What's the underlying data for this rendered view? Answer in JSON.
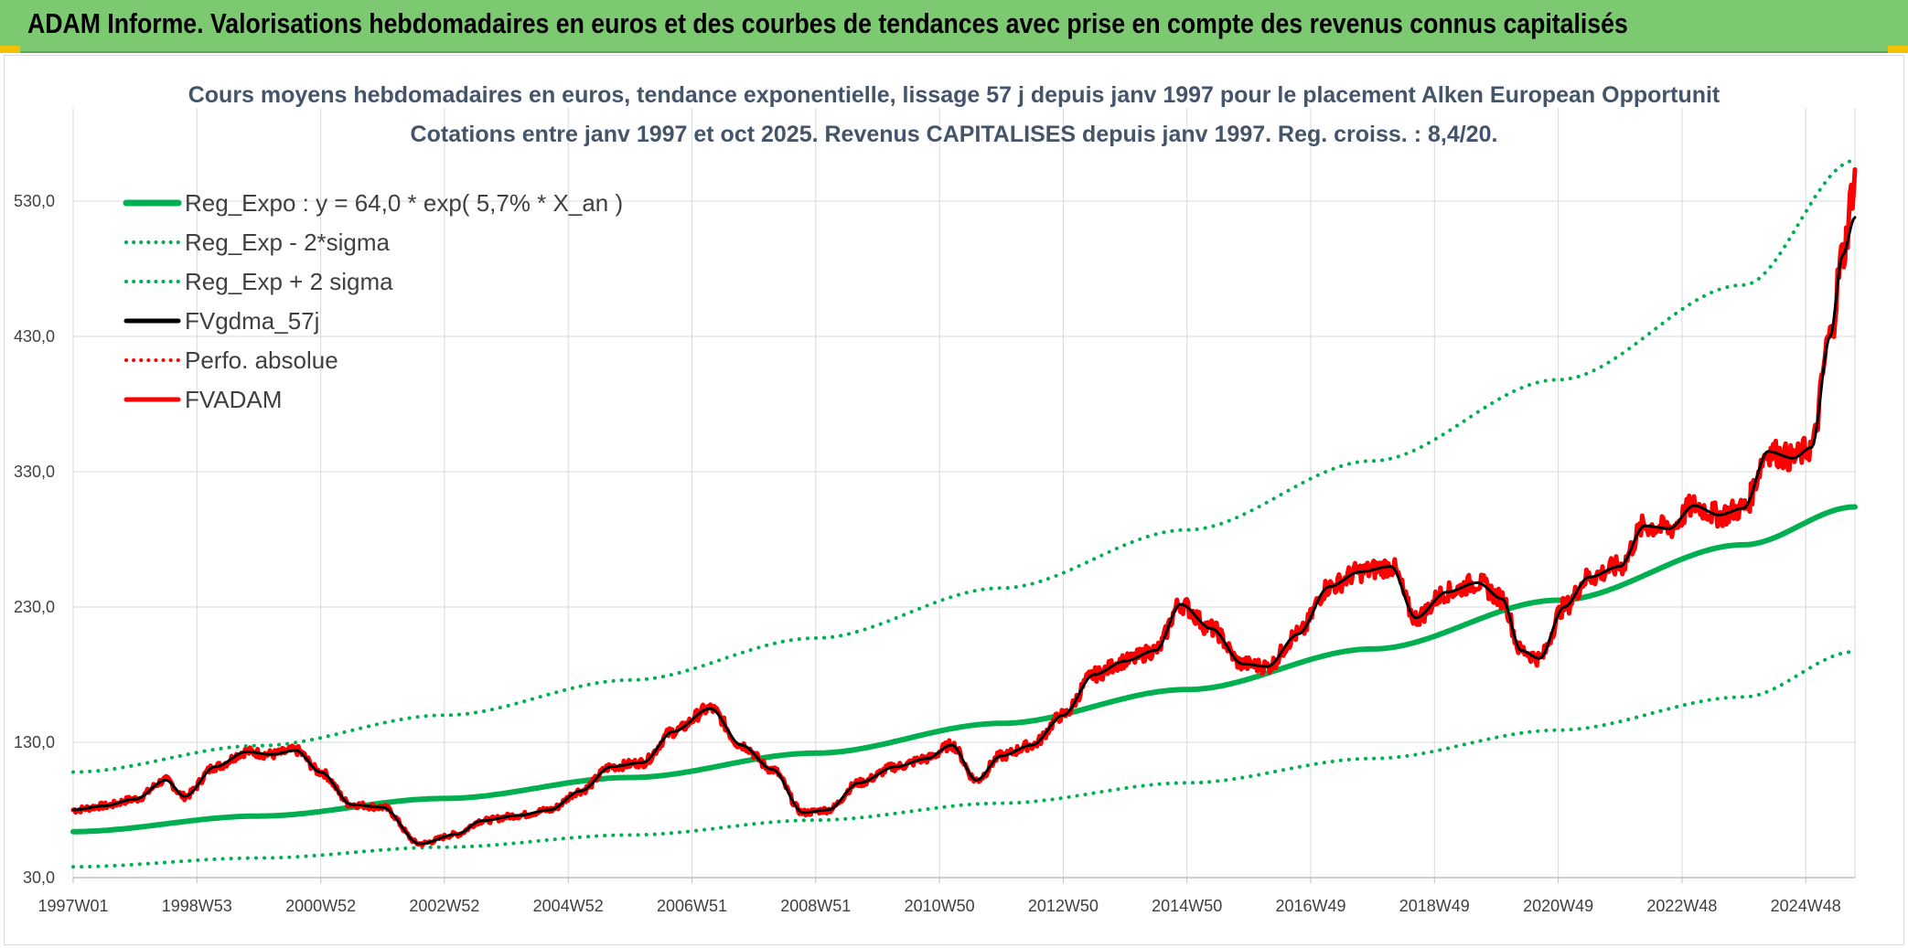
{
  "banner": {
    "title": "ADAM Informe. Valorisations hebdomadaires en euros et des courbes de tendances avec prise en compte des revenus connus capitalisés"
  },
  "chart_data": {
    "type": "line",
    "title": "Cours moyens hebdomadaires en euros, tendance exponentielle, lissage 57 j depuis janv 1997 pour le placement Alken European Opportunit",
    "subtitle": "Cotations entre janv 1997 et oct 2025. Revenus CAPITALISES depuis janv 1997. Reg. croiss. : 8,4/20.",
    "xlabel": "",
    "ylabel": "",
    "ylim": [
      30,
      580
    ],
    "yticks": [
      "30,0",
      "130,0",
      "230,0",
      "330,0",
      "430,0",
      "530,0"
    ],
    "xticks": [
      "1997W01",
      "1998W53",
      "2000W52",
      "2002W52",
      "2004W52",
      "2006W51",
      "2008W51",
      "2010W50",
      "2012W50",
      "2014W50",
      "2016W49",
      "2018W49",
      "2020W49",
      "2022W48",
      "2024W48"
    ],
    "xlim": [
      1997.0,
      2025.8
    ],
    "grid": true,
    "legend_position": "top-left",
    "series": [
      {
        "name": "Reg_Expo : y = 64,0 * exp( 5,7% *  X_an )",
        "color": "#00b050",
        "style": "solid",
        "width": 6,
        "x": [
          1997.0,
          2000.0,
          2003.0,
          2006.0,
          2009.0,
          2012.0,
          2015.0,
          2018.0,
          2021.0,
          2024.0,
          2025.8
        ],
        "values": [
          64.0,
          75.5,
          88.5,
          104.0,
          122.0,
          144.0,
          169.0,
          199.0,
          235.0,
          276.0,
          304.0
        ]
      },
      {
        "name": "Reg_Exp - 2*sigma",
        "color": "#00b050",
        "style": "dotted",
        "width": 4,
        "x": [
          1997.0,
          2000.0,
          2003.0,
          2006.0,
          2009.0,
          2012.0,
          2015.0,
          2018.0,
          2021.0,
          2024.0,
          2025.8
        ],
        "values": [
          38.0,
          44.5,
          52.5,
          61.5,
          72.5,
          85.0,
          100.0,
          118.0,
          139.0,
          163.5,
          197.0
        ]
      },
      {
        "name": "Reg_Exp + 2 sigma",
        "color": "#00b050",
        "style": "dotted",
        "width": 4,
        "x": [
          1997.0,
          2000.0,
          2003.0,
          2006.0,
          2009.0,
          2012.0,
          2015.0,
          2018.0,
          2021.0,
          2024.0,
          2025.8
        ],
        "values": [
          108.0,
          127.5,
          150.0,
          176.0,
          207.0,
          244.0,
          287.0,
          338.0,
          398.0,
          468.0,
          560.0
        ]
      },
      {
        "name": "FVgdma_57j",
        "color": "#000000",
        "style": "solid",
        "width": 3,
        "x": [
          1997.0,
          1997.5,
          1998.0,
          1998.5,
          1998.8,
          1999.3,
          1999.8,
          2000.2,
          2000.6,
          2001.0,
          2001.5,
          2002.0,
          2002.6,
          2003.2,
          2003.6,
          2004.2,
          2004.7,
          2005.2,
          2005.7,
          2006.2,
          2006.7,
          2007.3,
          2007.8,
          2008.3,
          2008.8,
          2009.2,
          2009.7,
          2010.3,
          2010.8,
          2011.2,
          2011.6,
          2012.0,
          2012.5,
          2013.0,
          2013.5,
          2014.0,
          2014.5,
          2014.9,
          2015.4,
          2015.9,
          2016.3,
          2016.8,
          2017.3,
          2017.8,
          2018.3,
          2018.7,
          2019.2,
          2019.7,
          2020.1,
          2020.4,
          2020.7,
          2021.1,
          2021.5,
          2022.0,
          2022.4,
          2022.8,
          2023.2,
          2023.6,
          2024.0,
          2024.4,
          2024.8,
          2025.1,
          2025.4,
          2025.6,
          2025.8
        ],
        "values": [
          80,
          83,
          88,
          102,
          90,
          112,
          123,
          121,
          124,
          108,
          84,
          82,
          55,
          62,
          72,
          76,
          80,
          94,
          112,
          115,
          138,
          155,
          128,
          110,
          78,
          80,
          100,
          112,
          118,
          128,
          102,
          120,
          128,
          150,
          180,
          190,
          198,
          232,
          214,
          188,
          186,
          210,
          245,
          256,
          260,
          222,
          241,
          248,
          236,
          198,
          192,
          230,
          252,
          260,
          290,
          288,
          305,
          298,
          303,
          345,
          340,
          348,
          430,
          490,
          518
        ]
      },
      {
        "name": "Perfo. absolue",
        "color": "#ff0000",
        "style": "dotted",
        "width": 3,
        "x": [],
        "values": []
      },
      {
        "name": "FVADAM",
        "color": "#ff0000",
        "style": "solid",
        "width": 5,
        "x": [
          1997.0,
          1997.5,
          1998.0,
          1998.5,
          1998.8,
          1999.3,
          1999.8,
          2000.2,
          2000.6,
          2001.0,
          2001.5,
          2002.0,
          2002.6,
          2003.2,
          2003.6,
          2004.2,
          2004.7,
          2005.2,
          2005.7,
          2006.2,
          2006.7,
          2007.3,
          2007.8,
          2008.3,
          2008.8,
          2009.2,
          2009.7,
          2010.3,
          2010.8,
          2011.2,
          2011.6,
          2012.0,
          2012.5,
          2013.0,
          2013.5,
          2014.0,
          2014.5,
          2014.9,
          2015.4,
          2015.9,
          2016.3,
          2016.8,
          2017.3,
          2017.8,
          2018.3,
          2018.7,
          2019.2,
          2019.7,
          2020.1,
          2020.4,
          2020.7,
          2021.1,
          2021.5,
          2022.0,
          2022.4,
          2022.8,
          2023.2,
          2023.6,
          2024.0,
          2024.4,
          2024.8,
          2025.1,
          2025.4,
          2025.6,
          2025.8
        ],
        "values": [
          80,
          83,
          88,
          102,
          90,
          112,
          123,
          121,
          124,
          108,
          84,
          82,
          55,
          62,
          72,
          76,
          80,
          94,
          112,
          115,
          138,
          155,
          128,
          110,
          78,
          80,
          100,
          112,
          118,
          128,
          102,
          120,
          128,
          150,
          180,
          190,
          198,
          232,
          214,
          188,
          186,
          210,
          245,
          256,
          260,
          222,
          241,
          248,
          236,
          198,
          192,
          230,
          252,
          260,
          290,
          288,
          305,
          298,
          303,
          345,
          340,
          348,
          430,
          490,
          545
        ]
      }
    ]
  }
}
